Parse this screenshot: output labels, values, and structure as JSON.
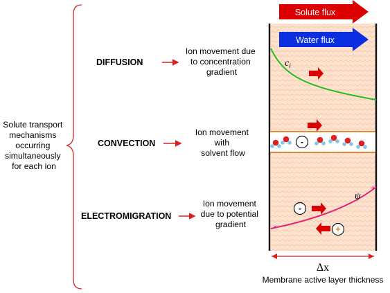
{
  "left_label": {
    "lines": [
      "Solute transport",
      "mechanisms",
      "occurring",
      "simultaneously",
      "for each ion"
    ]
  },
  "mechanisms": [
    {
      "name": "DIFFUSION",
      "description": [
        "Ion movement due",
        "to concentration",
        "gradient"
      ]
    },
    {
      "name": "CONVECTION",
      "description": [
        "Ion movement",
        "with",
        "solvent flow"
      ]
    },
    {
      "name": "ELECTROMIGRATION",
      "description": [
        "Ion movement",
        "due to potential",
        "gradient"
      ]
    }
  ],
  "flux_arrows": {
    "solute": {
      "label": "Solute flux",
      "color": "#dd0000"
    },
    "water": {
      "label": "Water flux",
      "color": "#0a2ee0"
    }
  },
  "diffusion_panel": {
    "concentration_symbol": "c",
    "concentration_subscript": "i",
    "curve_color": "#22bb22"
  },
  "convection_panel": {
    "ion_sign": "-",
    "band_color": "#d4812a"
  },
  "electromigration_panel": {
    "potential_symbol": "ψ",
    "plus_sign": "+",
    "minus_sign": "-",
    "anion_sign": "-",
    "cation_sign": "+",
    "curve_color": "#e0217a"
  },
  "membrane": {
    "thickness_symbol": "Δx",
    "caption": "Membrane active layer thickness"
  },
  "colors": {
    "pointer_arrow": "#dd1f1f",
    "bracket": "#dd2222",
    "membrane_fill": "#fde3cf",
    "membrane_hatch": "#f6c6a2",
    "oxygen": "#e02020",
    "hydrogen": "#7ec8e3"
  }
}
